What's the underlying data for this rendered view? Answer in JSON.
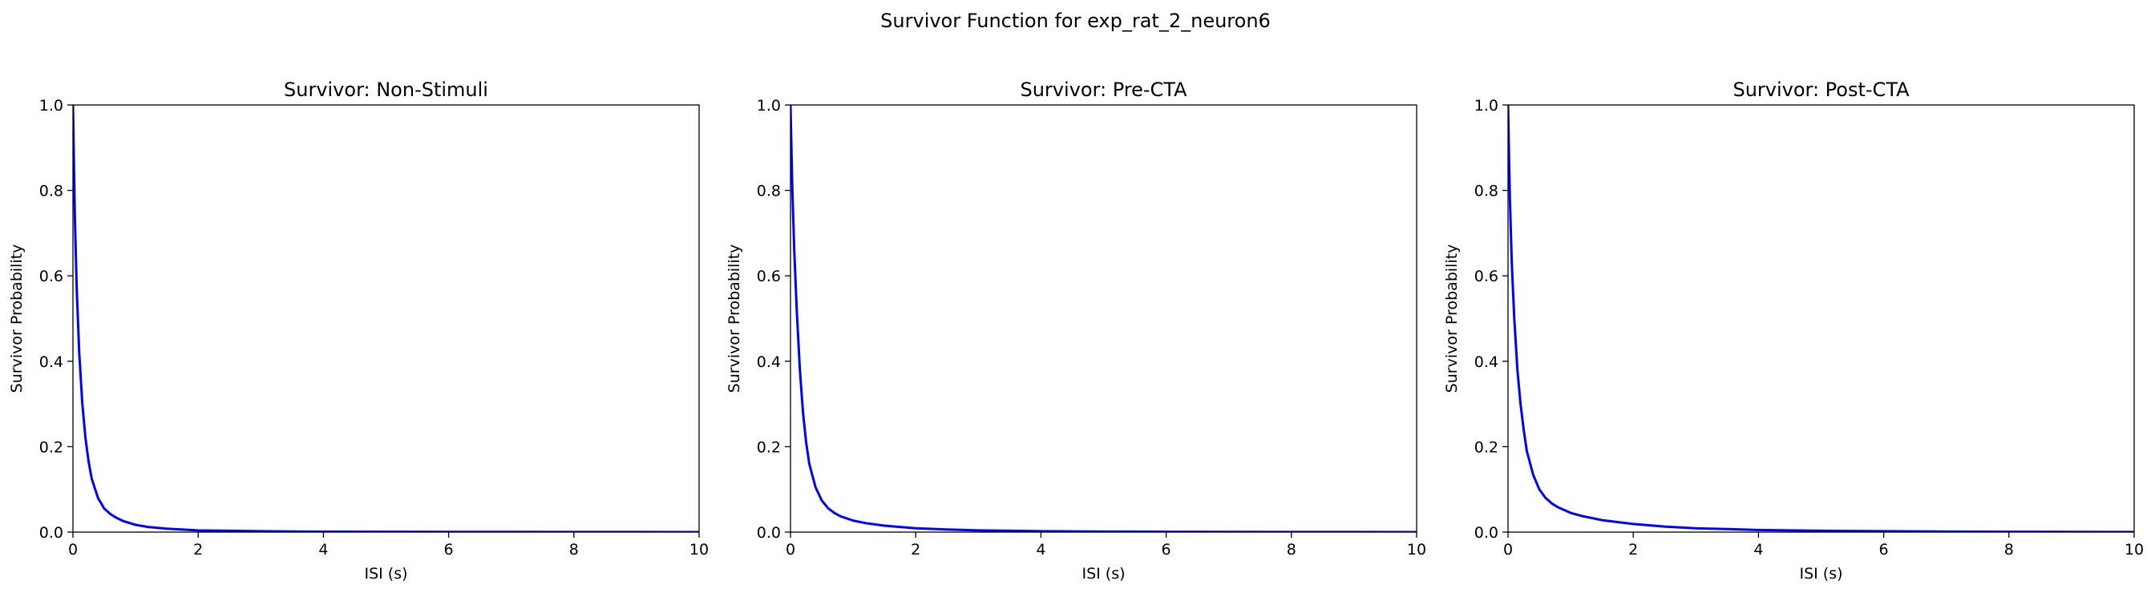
{
  "figure": {
    "title": "Survivor Function for exp_rat_2_neuron6"
  },
  "chart_data": [
    {
      "type": "line",
      "title": "Survivor: Non-Stimuli",
      "xlabel": "ISI (s)",
      "ylabel": "Survivor Probability",
      "xlim": [
        0,
        10
      ],
      "ylim": [
        0,
        1
      ],
      "xticks": [
        "0",
        "2",
        "4",
        "6",
        "8",
        "10"
      ],
      "yticks": [
        "0.0",
        "0.2",
        "0.4",
        "0.6",
        "0.8",
        "1.0"
      ],
      "grid": false,
      "series": [
        {
          "color": "#0000ff",
          "x": [
            0,
            0.03,
            0.06,
            0.1,
            0.15,
            0.2,
            0.25,
            0.3,
            0.4,
            0.5,
            0.6,
            0.7,
            0.8,
            1.0,
            1.2,
            1.5,
            2.0,
            2.5,
            3.0,
            4.0,
            5.0,
            6.0,
            7.0,
            8.0,
            9.0,
            10.0
          ],
          "y": [
            1.0,
            0.74,
            0.57,
            0.42,
            0.3,
            0.22,
            0.165,
            0.125,
            0.08,
            0.055,
            0.042,
            0.033,
            0.026,
            0.017,
            0.012,
            0.008,
            0.004,
            0.003,
            0.002,
            0.001,
            0.0008,
            0.0005,
            0.0004,
            0.0003,
            0.0002,
            0.0001
          ]
        }
      ]
    },
    {
      "type": "line",
      "title": "Survivor: Pre-CTA",
      "xlabel": "ISI (s)",
      "ylabel": "Survivor Probability",
      "xlim": [
        0,
        10
      ],
      "ylim": [
        0,
        1
      ],
      "xticks": [
        "0",
        "2",
        "4",
        "6",
        "8",
        "10"
      ],
      "yticks": [
        "0.0",
        "0.2",
        "0.4",
        "0.6",
        "0.8",
        "1.0"
      ],
      "grid": false,
      "series": [
        {
          "color": "#0000ff",
          "x": [
            0,
            0.03,
            0.06,
            0.1,
            0.15,
            0.2,
            0.25,
            0.3,
            0.4,
            0.5,
            0.6,
            0.7,
            0.8,
            1.0,
            1.2,
            1.5,
            2.0,
            2.5,
            3.0,
            4.0,
            5.0,
            6.0,
            7.0,
            8.0,
            9.0,
            10.0
          ],
          "y": [
            1.0,
            0.8,
            0.66,
            0.52,
            0.38,
            0.28,
            0.21,
            0.16,
            0.105,
            0.074,
            0.056,
            0.045,
            0.037,
            0.027,
            0.021,
            0.015,
            0.009,
            0.006,
            0.004,
            0.002,
            0.0012,
            0.0008,
            0.0005,
            0.0003,
            0.0002,
            0.0001
          ]
        }
      ]
    },
    {
      "type": "line",
      "title": "Survivor: Post-CTA",
      "xlabel": "ISI (s)",
      "ylabel": "Survivor Probability",
      "xlim": [
        0,
        10
      ],
      "ylim": [
        0,
        1
      ],
      "xticks": [
        "0",
        "2",
        "4",
        "6",
        "8",
        "10"
      ],
      "yticks": [
        "0.0",
        "0.2",
        "0.4",
        "0.6",
        "0.8",
        "1.0"
      ],
      "grid": false,
      "series": [
        {
          "color": "#0000ff",
          "x": [
            0,
            0.03,
            0.06,
            0.1,
            0.15,
            0.2,
            0.25,
            0.3,
            0.4,
            0.5,
            0.6,
            0.7,
            0.8,
            1.0,
            1.2,
            1.5,
            2.0,
            2.5,
            3.0,
            4.0,
            5.0,
            6.0,
            7.0,
            8.0,
            9.0,
            10.0
          ],
          "y": [
            1.0,
            0.78,
            0.63,
            0.5,
            0.38,
            0.3,
            0.24,
            0.19,
            0.135,
            0.1,
            0.08,
            0.067,
            0.058,
            0.045,
            0.037,
            0.028,
            0.019,
            0.013,
            0.009,
            0.005,
            0.003,
            0.002,
            0.0012,
            0.0008,
            0.0005,
            0.0003
          ]
        }
      ]
    }
  ]
}
